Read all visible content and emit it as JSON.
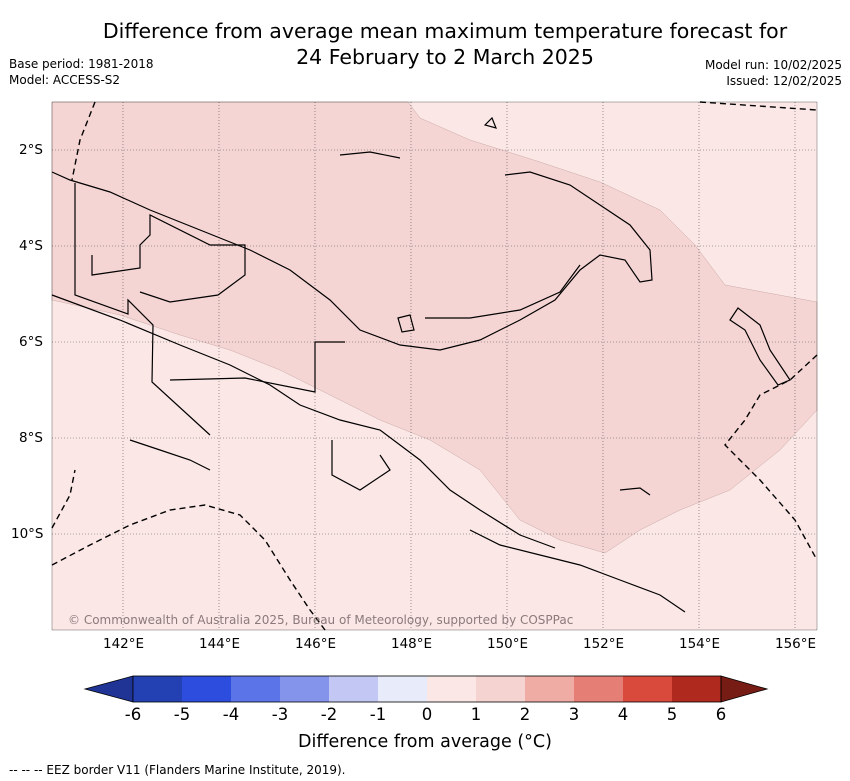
{
  "title_line1": "Difference from average mean maximum temperature forecast for",
  "title_line2": "24 February to 2 March 2025",
  "base_period": "Base period: 1981-2018",
  "model": "Model: ACCESS-S2",
  "model_run": "Model run: 10/02/2025",
  "issued": "Issued: 12/02/2025",
  "latitude_labels": [
    "2°S",
    "4°S",
    "6°S",
    "8°S",
    "10°S"
  ],
  "longitude_labels": [
    "142°E",
    "144°E",
    "146°E",
    "148°E",
    "150°E",
    "152°E",
    "154°E",
    "156°E"
  ],
  "copyright": "© Commonwealth of Australia 2025, Bureau of Meteorology, supported by COSPPac",
  "colorbar": {
    "label": "Difference from average (°C)",
    "ticks": [
      "-6",
      "-5",
      "-4",
      "-3",
      "-2",
      "-1",
      "0",
      "1",
      "2",
      "3",
      "4",
      "5",
      "6"
    ],
    "colors": [
      "#1f3494",
      "#2441b4",
      "#2d4ddf",
      "#5b74e8",
      "#8594eb",
      "#c2c8f3",
      "#e7ebfa",
      "#fbe8e6",
      "#f5d3d0",
      "#efaca5",
      "#e57f75",
      "#da4a3c",
      "#b0291f",
      "#761c15"
    ],
    "map_colors": {
      "zero_to_one": "#fbe8e6",
      "one_to_two": "#f5d5d3"
    }
  },
  "footnote": "-- -- -- EEZ border V11 (Flanders Marine Institute, 2019)."
}
